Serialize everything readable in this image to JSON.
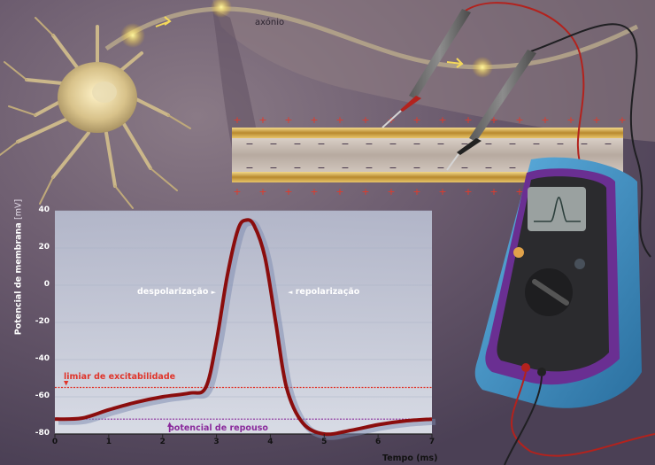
{
  "diagram": {
    "axon_label": "axónio",
    "membrane_signs_top": [
      "+",
      "+",
      "+",
      "+",
      "+",
      "+",
      "+",
      "+",
      "+",
      "+",
      "+",
      "+",
      "+",
      "+",
      "+",
      "+"
    ],
    "membrane_signs_bottom": [
      "+",
      "+",
      "+",
      "+",
      "+",
      "+",
      "+",
      "+",
      "+",
      "+",
      "+",
      "+",
      "+",
      "+",
      "+",
      "+"
    ],
    "inner_signs": [
      "−",
      "−",
      "−",
      "−",
      "−",
      "−",
      "−",
      "−",
      "−",
      "−",
      "−",
      "−",
      "−",
      "−",
      "−",
      "−"
    ]
  },
  "chart_data": {
    "type": "line",
    "title": "",
    "xlabel": "Tempo (ms)",
    "ylabel": "Potencial de membrana",
    "ylabel_unit": "[mV]",
    "xlim": [
      0,
      7
    ],
    "ylim": [
      -80,
      40
    ],
    "x_ticks": [
      "0",
      "1",
      "2",
      "3",
      "4",
      "5",
      "6",
      "7"
    ],
    "y_ticks": [
      "40",
      "20",
      "0",
      "-20",
      "-40",
      "-60",
      "-80"
    ],
    "series": [
      {
        "x": [
          0,
          0.5,
          1,
          1.5,
          2,
          2.5,
          2.8,
          3.0,
          3.2,
          3.4,
          3.55,
          3.7,
          3.9,
          4.1,
          4.3,
          4.6,
          5.0,
          5.5,
          6,
          6.5,
          7
        ],
        "y": [
          -72,
          -71.5,
          -67,
          -63,
          -60,
          -58,
          -55,
          -30,
          5,
          30,
          35,
          32,
          15,
          -20,
          -55,
          -74,
          -80,
          -78,
          -75,
          -73,
          -72
        ],
        "color": "#8b0d0d"
      }
    ],
    "threshold": {
      "value": -55,
      "label": "limiar de excitabilidade",
      "color": "#e0342a"
    },
    "resting": {
      "value": -72,
      "label": "potencial de repouso",
      "color": "#8a2a9c"
    },
    "annotations": [
      {
        "text": "despolarização",
        "arrow": "►"
      },
      {
        "text": "repolarização",
        "arrow": "◄"
      }
    ]
  },
  "colors": {
    "background": "#6e5f72",
    "plot_bg": "#c9cfe0",
    "trace": "#8b0d0d",
    "multimeter_body": "#3a8fc5",
    "multimeter_face": "#2b2b2e",
    "screen": "#9aa1a0",
    "axon_gold": "#c8a24a"
  }
}
